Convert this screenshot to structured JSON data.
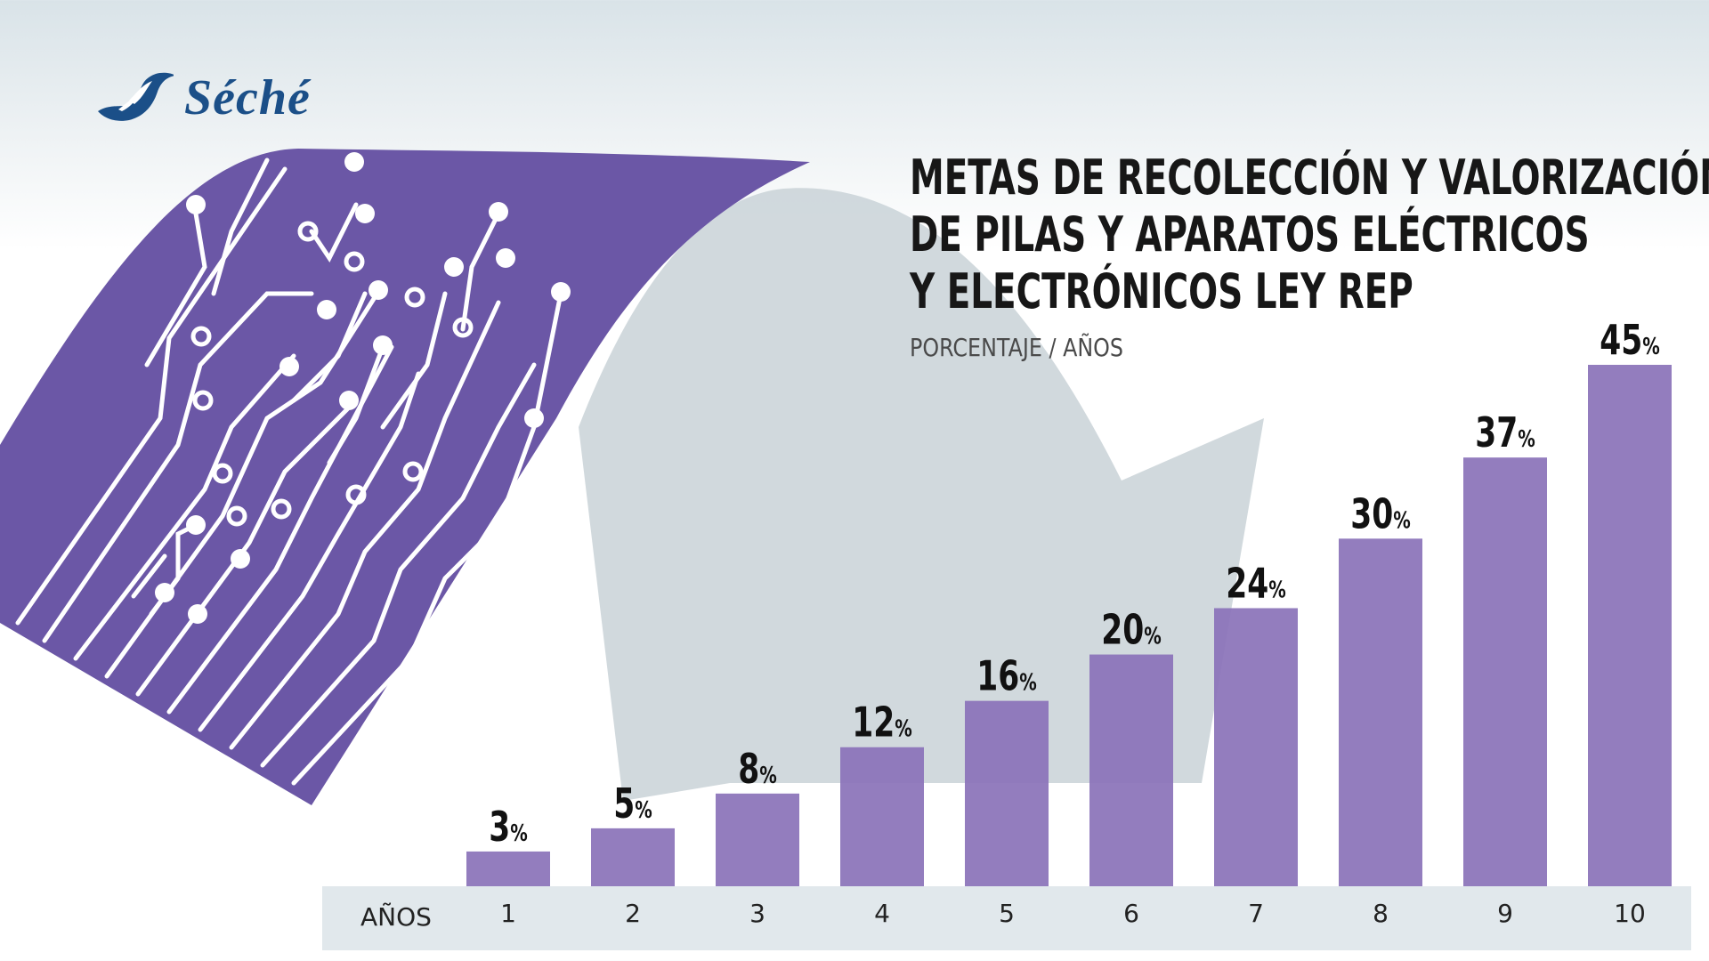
{
  "brand": {
    "name": "Séché",
    "color": "#1b4f88"
  },
  "chart_data": {
    "type": "bar",
    "title_lines": [
      "METAS DE RECOLECCIÓN Y VALORIZACIÓN",
      "DE PILAS Y APARATOS ELÉCTRICOS",
      "Y ELECTRÓNICOS LEY REP"
    ],
    "subtitle": "PORCENTAJE / AÑOS",
    "xlabel": "AÑOS",
    "categories": [
      "1",
      "2",
      "3",
      "4",
      "5",
      "6",
      "7",
      "8",
      "9",
      "10"
    ],
    "values": [
      3,
      5,
      8,
      12,
      16,
      20,
      24,
      30,
      37,
      45
    ],
    "value_suffix": "%",
    "ylim": [
      0,
      45
    ],
    "bar_color": "#8a72b8",
    "grid": false,
    "legend": "none"
  },
  "colors": {
    "circuit": "#6b57a6",
    "arrow": "#c9d2d7",
    "axis_band": "#e1e8ec"
  }
}
